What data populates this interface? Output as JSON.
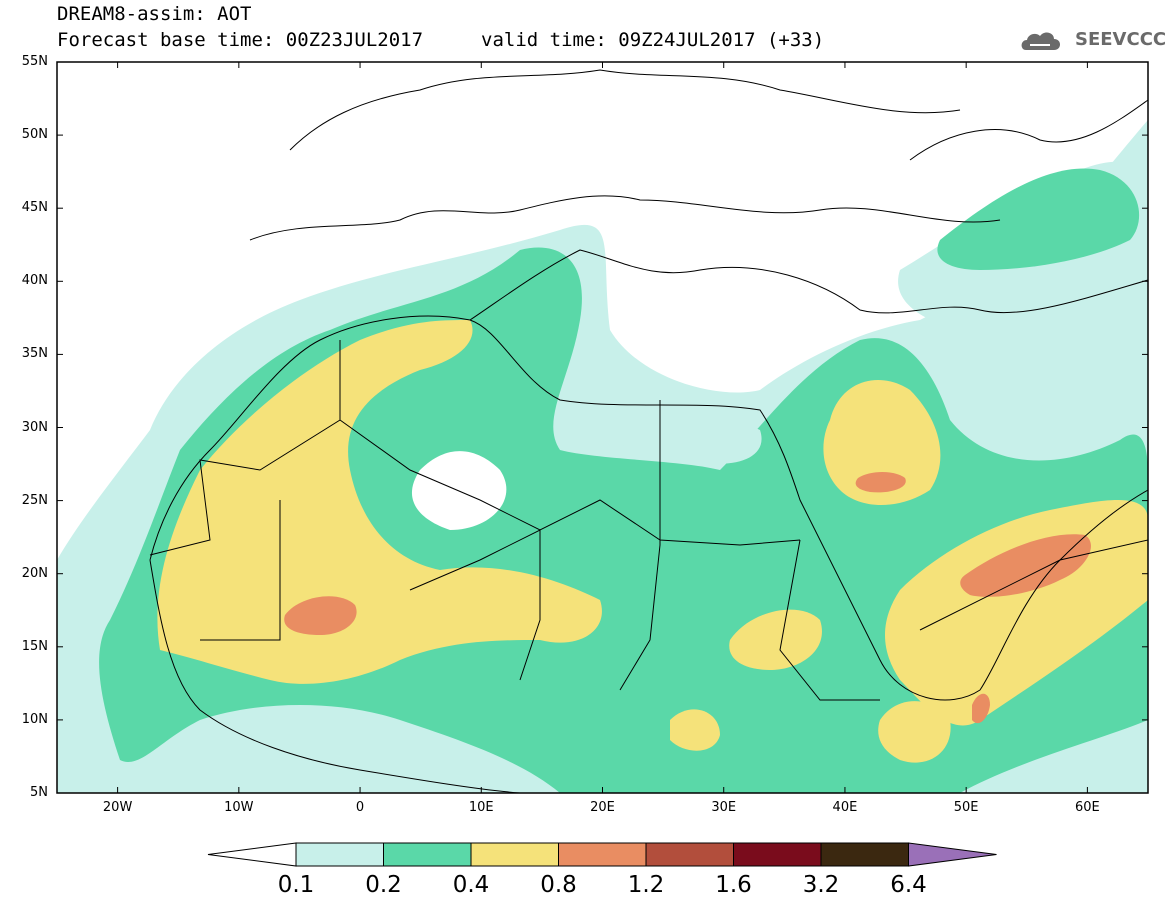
{
  "header": {
    "title": "DREAM8-assim: AOT",
    "base_time": "Forecast base time: 00Z23JUL2017",
    "valid_time": "valid time: 09Z24JUL2017 (+33)",
    "logo_text": "SEEVCCC"
  },
  "map": {
    "lon_range": [
      -25,
      65
    ],
    "lat_range": [
      5,
      55
    ],
    "lat_labels": [
      "55N",
      "50N",
      "45N",
      "40N",
      "35N",
      "30N",
      "25N",
      "20N",
      "15N",
      "10N",
      "5N"
    ],
    "lon_labels": [
      "20W",
      "10W",
      "0",
      "10E",
      "20E",
      "30E",
      "40E",
      "50E",
      "60E"
    ]
  },
  "colorbar": {
    "levels": [
      "0.1",
      "0.2",
      "0.4",
      "0.8",
      "1.2",
      "1.6",
      "3.2",
      "6.4"
    ],
    "colors": [
      "#c8f0ea",
      "#5ad8a8",
      "#f5e27a",
      "#e98d62",
      "#b24e3c",
      "#7a0c1c",
      "#3b2810",
      "#9a70b8"
    ]
  }
}
